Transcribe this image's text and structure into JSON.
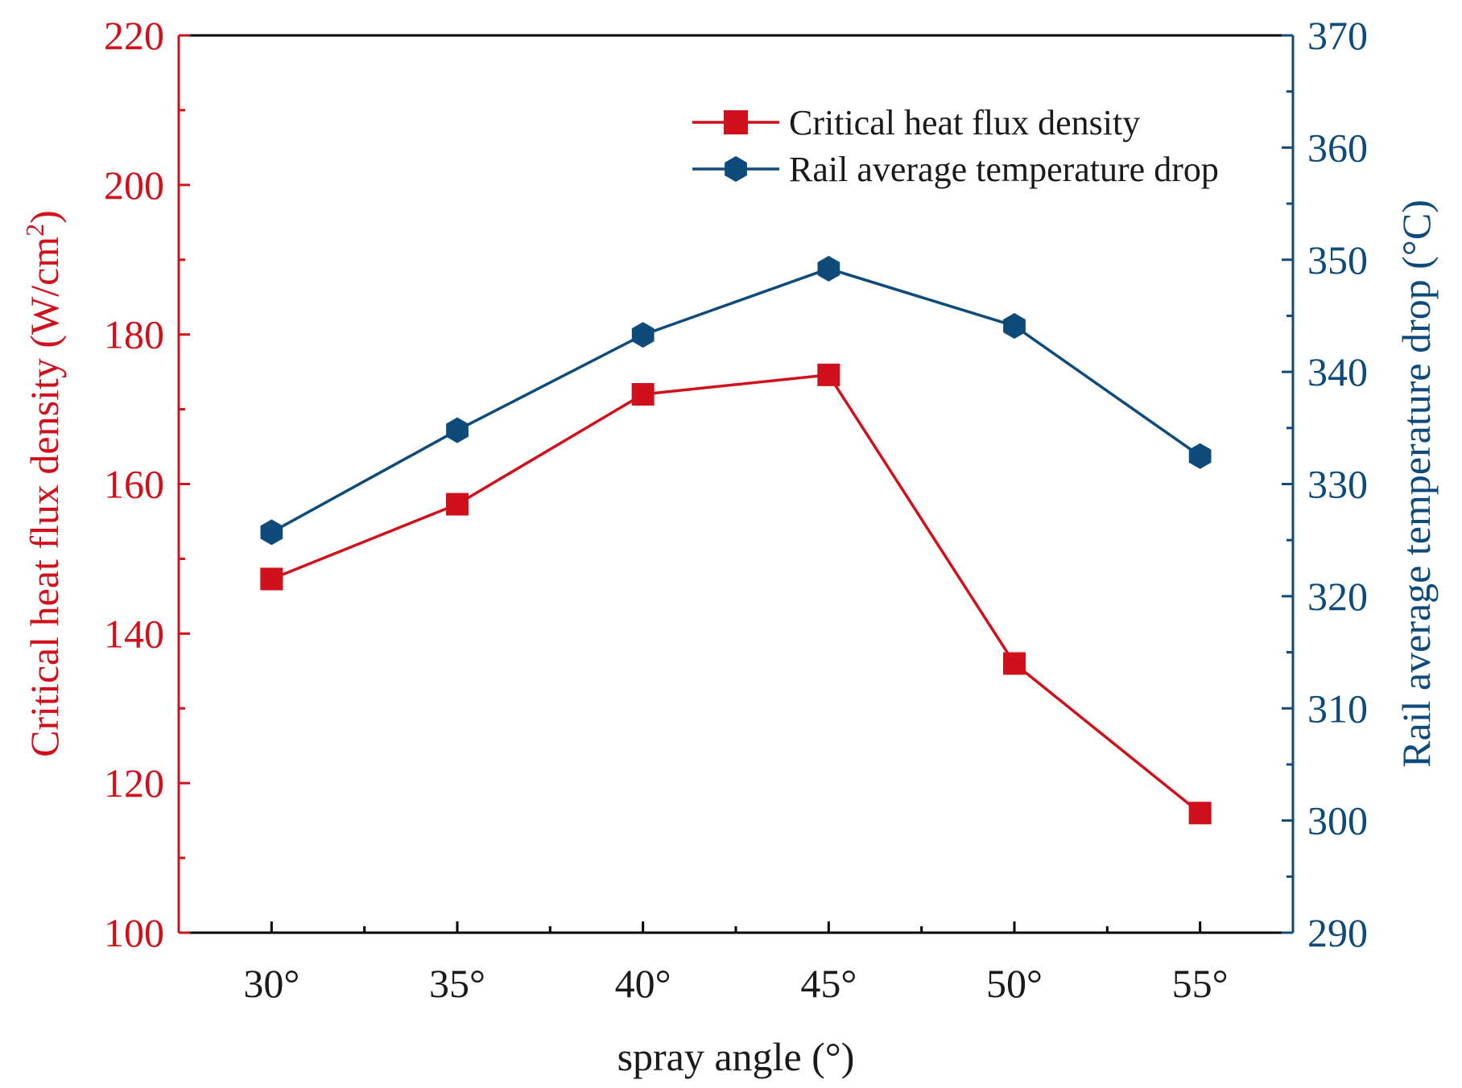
{
  "chart_data": {
    "type": "line",
    "categories": [
      "30°",
      "35°",
      "40°",
      "45°",
      "50°",
      "55°"
    ],
    "x": [
      30,
      35,
      40,
      45,
      50,
      55
    ],
    "xlabel": "spray angle (°)",
    "xlim": [
      27.5,
      57.5
    ],
    "left_axis": {
      "label_main": "Critical heat flux density (W/cm",
      "label_sup": "2",
      "label_tail": ")",
      "ylim": [
        100,
        220
      ],
      "ticks": [
        "100",
        "120",
        "140",
        "160",
        "180",
        "200",
        "220"
      ],
      "color": "#d0101a"
    },
    "right_axis": {
      "label": "Rail average temperature drop (°C)",
      "ylim": [
        290,
        370
      ],
      "ticks": [
        "290",
        "300",
        "310",
        "320",
        "330",
        "340",
        "350",
        "360",
        "370"
      ],
      "color": "#0e4a7a"
    },
    "series": [
      {
        "name": "Critical heat flux density",
        "axis": "left",
        "marker": "square",
        "color": "#d0101a",
        "values": [
          147.3,
          157.3,
          172.0,
          174.6,
          136.0,
          116.0
        ]
      },
      {
        "name": "Rail average temperature drop",
        "axis": "right",
        "marker": "hexagon",
        "color": "#0e4a7a",
        "values": [
          325.7,
          334.8,
          343.3,
          349.2,
          344.1,
          332.5
        ]
      }
    ],
    "legend_position": "top-right",
    "grid": false
  }
}
